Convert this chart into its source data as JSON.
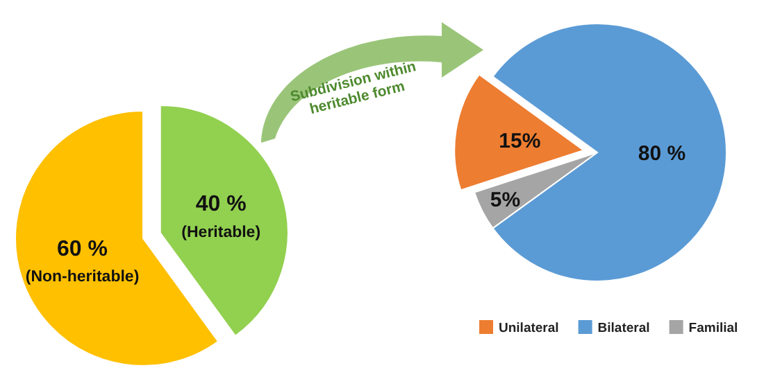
{
  "chart_data": [
    {
      "type": "pie",
      "categories": [
        "(Non-heritable)",
        "(Heritable)"
      ],
      "values": [
        60,
        40
      ],
      "colors": [
        "#ffc000",
        "#92d050"
      ],
      "value_labels": [
        "60 %",
        "40 %"
      ],
      "legend": false,
      "annotations": [
        "Subdivision within heritable form"
      ]
    },
    {
      "type": "pie",
      "categories": [
        "Unilateral",
        "Bilateral",
        "Familial"
      ],
      "values": [
        15,
        80,
        5
      ],
      "colors": [
        "#ed7d31",
        "#5b9bd5",
        "#a5a5a5"
      ],
      "value_labels": [
        "15%",
        "80 %",
        "5%"
      ],
      "legend": "bottom"
    }
  ]
}
